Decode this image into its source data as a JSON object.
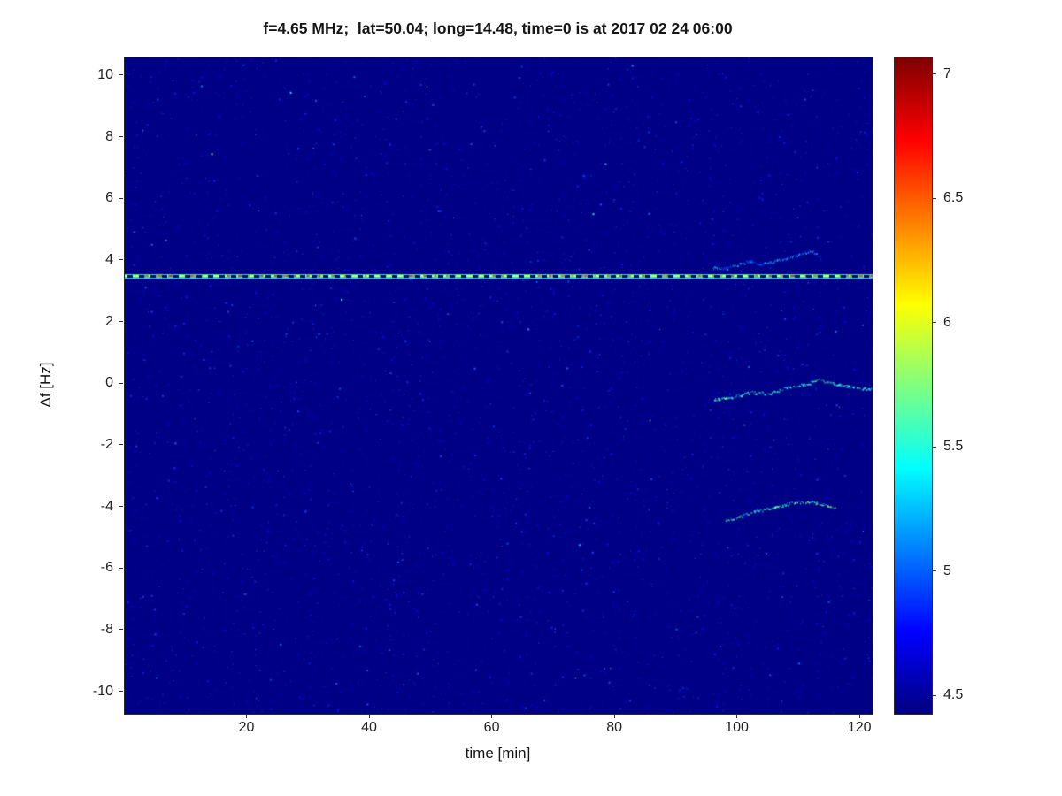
{
  "title": "f=4.65 MHz;  lat=50.04; long=14.48, time=0 is at 2017 02 24 06:00",
  "chart_data": {
    "type": "heatmap",
    "title": "f=4.65 MHz;  lat=50.04; long=14.48, time=0 is at 2017 02 24 06:00",
    "xlabel": "time [min]",
    "ylabel": "Δf [Hz]",
    "xlim": [
      0,
      122
    ],
    "ylim": [
      -10.7,
      10.6
    ],
    "x_ticks": [
      20,
      40,
      60,
      80,
      100,
      120
    ],
    "y_ticks": [
      10,
      8,
      6,
      4,
      2,
      0,
      -2,
      -4,
      -6,
      -8,
      -10
    ],
    "grid": false,
    "colormap": "jet",
    "color_scale": {
      "min": 4.43,
      "max": 7.07,
      "ticks": [
        7,
        6.5,
        6,
        5.5,
        5,
        4.5
      ]
    },
    "background_value": 4.45,
    "noise": {
      "density": 0.015,
      "value_min": 4.5,
      "value_max": 5.1
    },
    "carrier_line": {
      "y": 3.5,
      "value": 6.05,
      "dashed": true,
      "x_start": 0,
      "x_end": 122
    },
    "traces": [
      {
        "name": "upper-doppler-trace",
        "value": 5.1,
        "points": [
          [
            96,
            3.8
          ],
          [
            98,
            3.75
          ],
          [
            100,
            3.9
          ],
          [
            102,
            4.0
          ],
          [
            104,
            3.9
          ],
          [
            106,
            4.0
          ],
          [
            108,
            4.1
          ],
          [
            110,
            4.2
          ],
          [
            112,
            4.35
          ],
          [
            113.5,
            4.1
          ]
        ]
      },
      {
        "name": "middle-doppler-trace",
        "value": 5.5,
        "points": [
          [
            96,
            -0.5
          ],
          [
            99,
            -0.4
          ],
          [
            102,
            -0.25
          ],
          [
            105,
            -0.3
          ],
          [
            108,
            -0.1
          ],
          [
            111,
            0.0
          ],
          [
            113,
            0.15
          ],
          [
            116,
            0.0
          ],
          [
            119,
            -0.1
          ],
          [
            122,
            -0.15
          ]
        ]
      },
      {
        "name": "lower-doppler-trace",
        "value": 5.5,
        "points": [
          [
            98,
            -4.4
          ],
          [
            100,
            -4.3
          ],
          [
            103,
            -4.1
          ],
          [
            106,
            -4.0
          ],
          [
            109,
            -3.85
          ],
          [
            112,
            -3.8
          ],
          [
            114,
            -3.9
          ],
          [
            116,
            -4.05
          ]
        ]
      }
    ]
  }
}
